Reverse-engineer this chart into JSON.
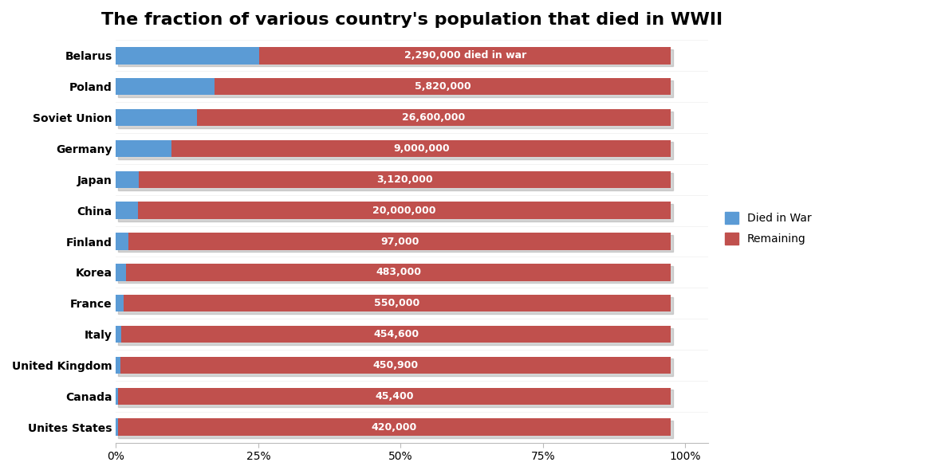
{
  "title": "The fraction of various country's population that died in WWII",
  "countries": [
    "Belarus",
    "Poland",
    "Soviet Union",
    "Germany",
    "Japan",
    "China",
    "Finland",
    "Korea",
    "France",
    "Italy",
    "United Kingdom",
    "Canada",
    "Unites States"
  ],
  "died_pct": [
    0.252,
    0.173,
    0.142,
    0.098,
    0.04,
    0.038,
    0.022,
    0.018,
    0.013,
    0.009,
    0.008,
    0.003,
    0.003
  ],
  "labels": [
    "2,290,000 died in war",
    "5,820,000",
    "26,600,000",
    "9,000,000",
    "3,120,000",
    "20,000,000",
    "97,000",
    "483,000",
    "550,000",
    "454,600",
    "450,900",
    "45,400",
    "420,000"
  ],
  "blue_color": "#5B9BD5",
  "red_color": "#C0504D",
  "background_color": "#FFFFFF",
  "title_fontsize": 16,
  "label_fontsize": 9,
  "tick_fontsize": 10,
  "legend_fontsize": 10,
  "bar_height": 0.55,
  "bar_max_pct": 0.975,
  "xlim_max": 1.04
}
